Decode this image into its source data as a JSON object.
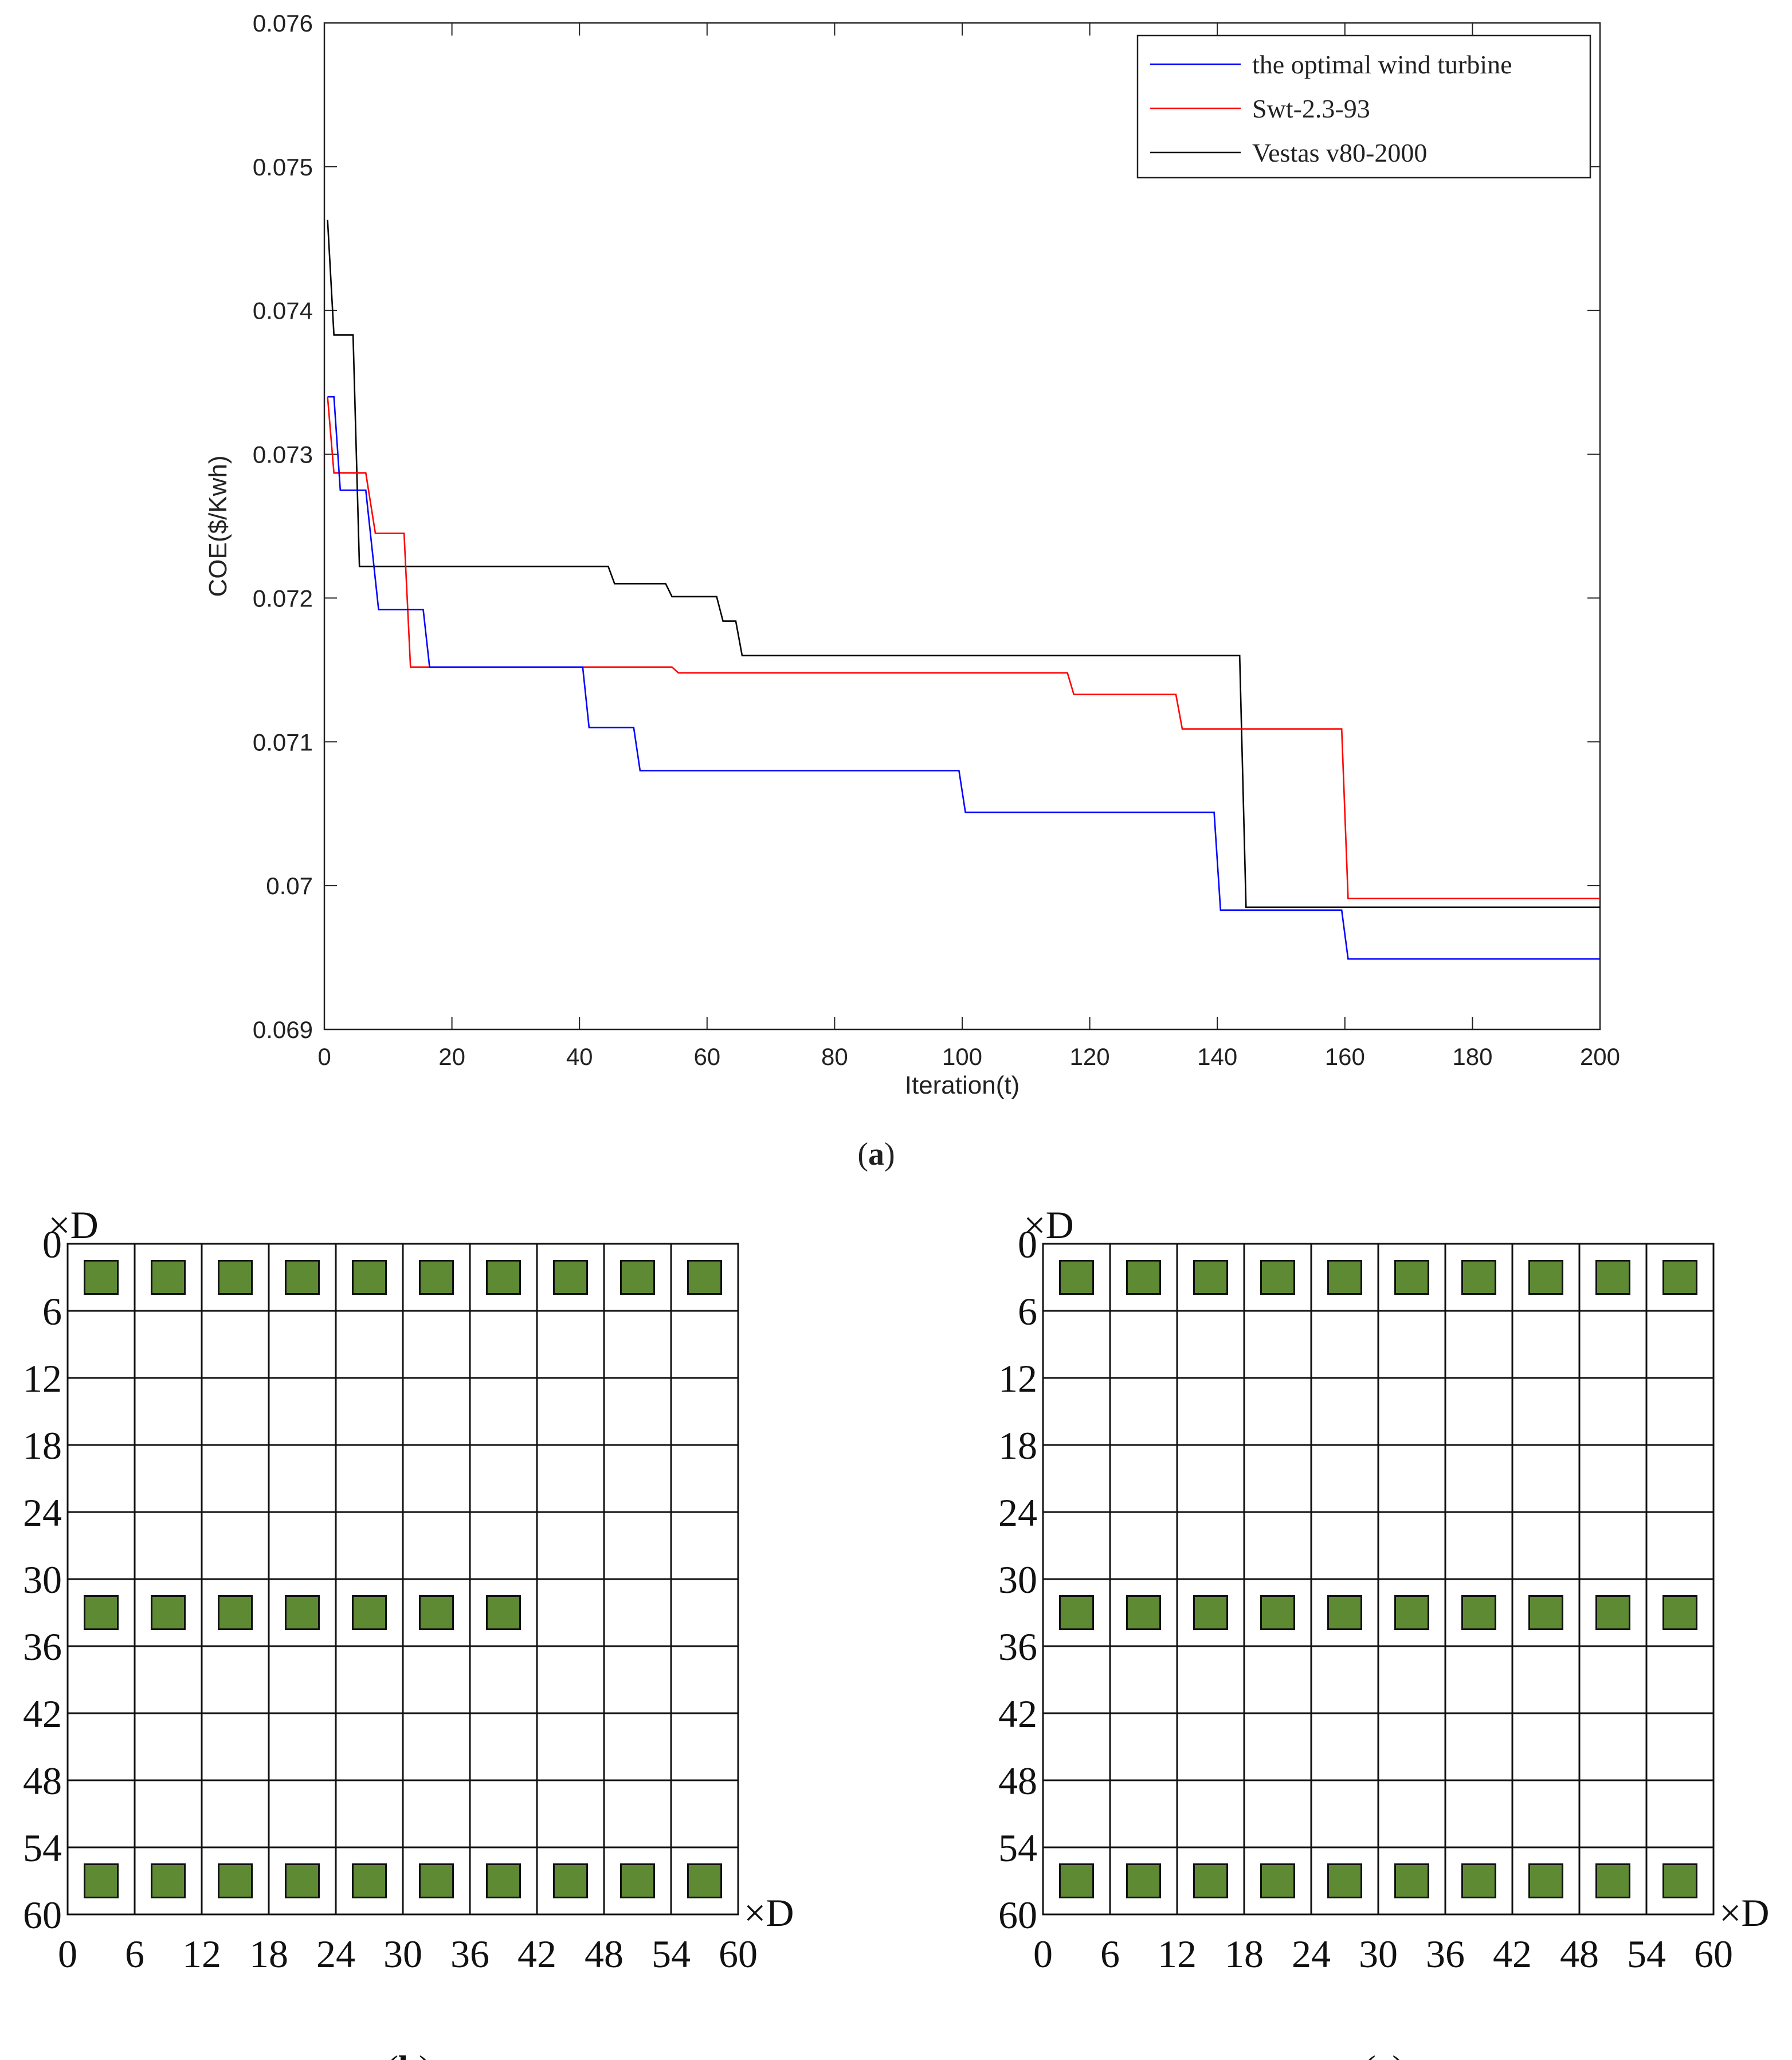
{
  "chart_data": [
    {
      "id": "a",
      "type": "line",
      "panel_label": "a",
      "xlabel": "Iteration(t)",
      "ylabel": "COE($/Kwh)",
      "xlim": [
        0,
        200
      ],
      "ylim": [
        0.069,
        0.076
      ],
      "x_ticks": [
        0,
        20,
        40,
        60,
        80,
        100,
        120,
        140,
        160,
        180,
        200
      ],
      "y_ticks": [
        0.069,
        0.07,
        0.071,
        0.072,
        0.073,
        0.074,
        0.075,
        0.076
      ],
      "y_tick_labels": [
        "0.069",
        "0.07",
        "0.071",
        "0.072",
        "0.073",
        "0.074",
        "0.075",
        "0.076"
      ],
      "legend": "top-right",
      "series": [
        {
          "name": "the optimal wind turbine",
          "color": "#0000ff",
          "points": [
            [
              0.5,
              0.0734
            ],
            [
              1.5,
              0.0734
            ],
            [
              2.5,
              0.07275
            ],
            [
              6.5,
              0.07275
            ],
            [
              8.5,
              0.07192
            ],
            [
              15.5,
              0.07192
            ],
            [
              16.5,
              0.07152
            ],
            [
              40.5,
              0.07152
            ],
            [
              41.5,
              0.0711
            ],
            [
              48.5,
              0.0711
            ],
            [
              49.5,
              0.0708
            ],
            [
              99.5,
              0.0708
            ],
            [
              100.5,
              0.07051
            ],
            [
              139.5,
              0.07051
            ],
            [
              140.5,
              0.06983
            ],
            [
              159.5,
              0.06983
            ],
            [
              160.5,
              0.06949
            ],
            [
              200,
              0.06949
            ]
          ]
        },
        {
          "name": "Swt-2.3-93",
          "color": "#ff0000",
          "points": [
            [
              0.5,
              0.0734
            ],
            [
              1.5,
              0.07287
            ],
            [
              6.5,
              0.07287
            ],
            [
              8,
              0.07245
            ],
            [
              12.5,
              0.07245
            ],
            [
              13.5,
              0.07152
            ],
            [
              54.5,
              0.07152
            ],
            [
              55.5,
              0.07148
            ],
            [
              116.5,
              0.07148
            ],
            [
              117.5,
              0.07133
            ],
            [
              133.5,
              0.07133
            ],
            [
              134.5,
              0.07109
            ],
            [
              159.5,
              0.07109
            ],
            [
              160.5,
              0.06991
            ],
            [
              200,
              0.06991
            ]
          ]
        },
        {
          "name": "Vestas v80-2000",
          "color": "#000000",
          "points": [
            [
              0.5,
              0.07463
            ],
            [
              1.5,
              0.07383
            ],
            [
              4.5,
              0.07383
            ],
            [
              5.5,
              0.07222
            ],
            [
              44.5,
              0.07222
            ],
            [
              45.5,
              0.0721
            ],
            [
              53.5,
              0.0721
            ],
            [
              54.5,
              0.07201
            ],
            [
              61.5,
              0.07201
            ],
            [
              62.5,
              0.07184
            ],
            [
              64.5,
              0.07184
            ],
            [
              65.5,
              0.0716
            ],
            [
              143.5,
              0.0716
            ],
            [
              144.5,
              0.06985
            ],
            [
              200,
              0.06985
            ]
          ]
        }
      ]
    },
    {
      "id": "b",
      "type": "scatter",
      "panel_label": "b",
      "unit_label": "×D",
      "xlim": [
        0,
        60
      ],
      "ylim": [
        0,
        60
      ],
      "x_ticks": [
        0,
        6,
        12,
        18,
        24,
        30,
        36,
        42,
        48,
        54,
        60
      ],
      "y_ticks": [
        0,
        6,
        12,
        18,
        24,
        30,
        36,
        42,
        48,
        54,
        60
      ],
      "marker_color": "#5e8a34",
      "turbines": [
        [
          3,
          3
        ],
        [
          9,
          3
        ],
        [
          15,
          3
        ],
        [
          21,
          3
        ],
        [
          27,
          3
        ],
        [
          33,
          3
        ],
        [
          39,
          3
        ],
        [
          45,
          3
        ],
        [
          51,
          3
        ],
        [
          57,
          3
        ],
        [
          3,
          33
        ],
        [
          9,
          33
        ],
        [
          15,
          33
        ],
        [
          21,
          33
        ],
        [
          27,
          33
        ],
        [
          33,
          33
        ],
        [
          39,
          33
        ],
        [
          3,
          57
        ],
        [
          9,
          57
        ],
        [
          15,
          57
        ],
        [
          21,
          57
        ],
        [
          27,
          57
        ],
        [
          33,
          57
        ],
        [
          39,
          57
        ],
        [
          45,
          57
        ],
        [
          51,
          57
        ],
        [
          57,
          57
        ]
      ]
    },
    {
      "id": "c",
      "type": "scatter",
      "panel_label": "c",
      "unit_label": "×D",
      "xlim": [
        0,
        60
      ],
      "ylim": [
        0,
        60
      ],
      "x_ticks": [
        0,
        6,
        12,
        18,
        24,
        30,
        36,
        42,
        48,
        54,
        60
      ],
      "y_ticks": [
        0,
        6,
        12,
        18,
        24,
        30,
        36,
        42,
        48,
        54,
        60
      ],
      "marker_color": "#5e8a34",
      "turbines": [
        [
          3,
          3
        ],
        [
          9,
          3
        ],
        [
          15,
          3
        ],
        [
          21,
          3
        ],
        [
          27,
          3
        ],
        [
          33,
          3
        ],
        [
          39,
          3
        ],
        [
          45,
          3
        ],
        [
          51,
          3
        ],
        [
          57,
          3
        ],
        [
          3,
          33
        ],
        [
          9,
          33
        ],
        [
          15,
          33
        ],
        [
          21,
          33
        ],
        [
          27,
          33
        ],
        [
          33,
          33
        ],
        [
          39,
          33
        ],
        [
          45,
          33
        ],
        [
          51,
          33
        ],
        [
          57,
          33
        ],
        [
          3,
          57
        ],
        [
          9,
          57
        ],
        [
          15,
          57
        ],
        [
          21,
          57
        ],
        [
          27,
          57
        ],
        [
          33,
          57
        ],
        [
          39,
          57
        ],
        [
          45,
          57
        ],
        [
          51,
          57
        ],
        [
          57,
          57
        ]
      ]
    }
  ]
}
